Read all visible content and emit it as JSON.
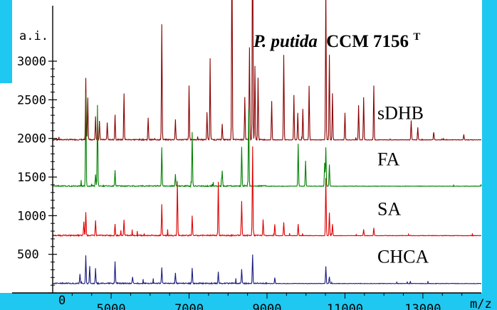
{
  "colors": {
    "background_accent": "#1ec8f0",
    "panel": "#ffffff",
    "axis": "#000000"
  },
  "chart_data": {
    "type": "line",
    "title_italic": "P. putida",
    "title_rest": "CCM 7156",
    "title_superscript": "T",
    "ylabel": "a.i.",
    "xlabel": "m/z",
    "xlim": [
      3500,
      14500
    ],
    "ylim": [
      0,
      3700
    ],
    "xticks": [
      5000,
      7000,
      9000,
      11000,
      13000
    ],
    "xtick_labels": [
      "5000",
      "7000",
      "9000",
      "11000",
      "13000"
    ],
    "yticks": [
      0,
      500,
      1000,
      1500,
      2000,
      2500,
      3000
    ],
    "ytick_labels": [
      "0",
      "500",
      "1000",
      "1500",
      "2000",
      "2500",
      "3000"
    ],
    "series": [
      {
        "name": "sDHB",
        "color": "#8b0000",
        "baseline": 1980,
        "peaks": [
          [
            4350,
            800
          ],
          [
            4400,
            550
          ],
          [
            4600,
            300
          ],
          [
            4700,
            240
          ],
          [
            4900,
            220
          ],
          [
            5100,
            320
          ],
          [
            5330,
            600
          ],
          [
            5950,
            280
          ],
          [
            6300,
            1500
          ],
          [
            6650,
            260
          ],
          [
            7000,
            700
          ],
          [
            7460,
            350
          ],
          [
            7540,
            1050
          ],
          [
            7850,
            200
          ],
          [
            8100,
            2700
          ],
          [
            8430,
            550
          ],
          [
            8550,
            1200
          ],
          [
            8630,
            3350
          ],
          [
            8690,
            950
          ],
          [
            8770,
            800
          ],
          [
            9120,
            500
          ],
          [
            9430,
            1100
          ],
          [
            9690,
            550
          ],
          [
            9790,
            350
          ],
          [
            9920,
            400
          ],
          [
            10080,
            700
          ],
          [
            10510,
            2000
          ],
          [
            10600,
            1100
          ],
          [
            10680,
            600
          ],
          [
            11000,
            350
          ],
          [
            11350,
            450
          ],
          [
            11480,
            550
          ],
          [
            11740,
            700
          ],
          [
            12700,
            250
          ],
          [
            12870,
            160
          ],
          [
            13280,
            100
          ],
          [
            14050,
            70
          ],
          [
            14530,
            80
          ],
          [
            15250,
            60
          ]
        ]
      },
      {
        "name": "FA",
        "color": "#008000",
        "baseline": 1380,
        "peaks": [
          [
            4350,
            1200
          ],
          [
            4600,
            150
          ],
          [
            4650,
            1050
          ],
          [
            5100,
            200
          ],
          [
            6300,
            500
          ],
          [
            6650,
            150
          ],
          [
            7080,
            700
          ],
          [
            7850,
            200
          ],
          [
            8350,
            500
          ],
          [
            8530,
            1000
          ],
          [
            9800,
            550
          ],
          [
            9990,
            330
          ],
          [
            10480,
            300
          ],
          [
            10510,
            500
          ],
          [
            10600,
            280
          ]
        ]
      },
      {
        "name": "SA",
        "color": "#e00000",
        "baseline": 740,
        "peaks": [
          [
            4300,
            180
          ],
          [
            4350,
            300
          ],
          [
            4600,
            200
          ],
          [
            5100,
            150
          ],
          [
            5330,
            200
          ],
          [
            6300,
            400
          ],
          [
            6700,
            700
          ],
          [
            7080,
            250
          ],
          [
            7750,
            700
          ],
          [
            8350,
            450
          ],
          [
            8630,
            1150
          ],
          [
            8900,
            200
          ],
          [
            9200,
            150
          ],
          [
            9430,
            170
          ],
          [
            9800,
            150
          ],
          [
            10510,
            750
          ],
          [
            10600,
            300
          ],
          [
            10680,
            150
          ],
          [
            11480,
            80
          ],
          [
            11740,
            100
          ],
          [
            16700,
            60
          ]
        ]
      },
      {
        "name": "CHCA",
        "color": "#1a1a80",
        "baseline": 120,
        "peaks": [
          [
            4200,
            120
          ],
          [
            4350,
            360
          ],
          [
            4450,
            220
          ],
          [
            4600,
            200
          ],
          [
            5100,
            280
          ],
          [
            5550,
            80
          ],
          [
            6300,
            200
          ],
          [
            6650,
            130
          ],
          [
            7080,
            200
          ],
          [
            7750,
            150
          ],
          [
            8350,
            180
          ],
          [
            8630,
            380
          ],
          [
            9200,
            80
          ],
          [
            10510,
            220
          ],
          [
            10600,
            90
          ]
        ]
      }
    ]
  }
}
